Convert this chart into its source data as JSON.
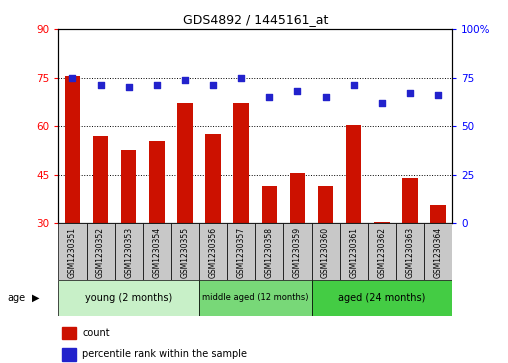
{
  "title": "GDS4892 / 1445161_at",
  "samples": [
    "GSM1230351",
    "GSM1230352",
    "GSM1230353",
    "GSM1230354",
    "GSM1230355",
    "GSM1230356",
    "GSM1230357",
    "GSM1230358",
    "GSM1230359",
    "GSM1230360",
    "GSM1230361",
    "GSM1230362",
    "GSM1230363",
    "GSM1230364"
  ],
  "counts": [
    75.5,
    57.0,
    52.5,
    55.5,
    67.0,
    57.5,
    67.0,
    41.5,
    45.5,
    41.5,
    60.5,
    30.5,
    44.0,
    35.5
  ],
  "percentiles": [
    75,
    71,
    70,
    71,
    74,
    71,
    75,
    65,
    68,
    65,
    71,
    62,
    67,
    66
  ],
  "ylim_left": [
    30,
    90
  ],
  "ylim_right": [
    0,
    100
  ],
  "yticks_left": [
    30,
    45,
    60,
    75,
    90
  ],
  "yticks_right": [
    0,
    25,
    50,
    75,
    100
  ],
  "ytick_labels_right": [
    "0",
    "25",
    "50",
    "75",
    "100%"
  ],
  "ytick_labels_left": [
    "30",
    "45",
    "60",
    "75",
    "90"
  ],
  "groups": [
    {
      "label": "young (2 months)",
      "start": 0,
      "end": 5,
      "color": "#C8F0C8"
    },
    {
      "label": "middle aged (12 months)",
      "start": 5,
      "end": 9,
      "color": "#78D878"
    },
    {
      "label": "aged (24 months)",
      "start": 9,
      "end": 14,
      "color": "#44CC44"
    }
  ],
  "bar_color": "#CC1100",
  "dot_color": "#2222CC",
  "plot_bg": "#FFFFFF",
  "label_bg": "#C8C8C8",
  "grid_dotted_color": "#000000",
  "title_fontsize": 9,
  "axis_fontsize": 7.5,
  "label_fontsize": 5.5,
  "group_fontsize_small": 6,
  "group_fontsize_large": 7,
  "legend_fontsize": 7
}
